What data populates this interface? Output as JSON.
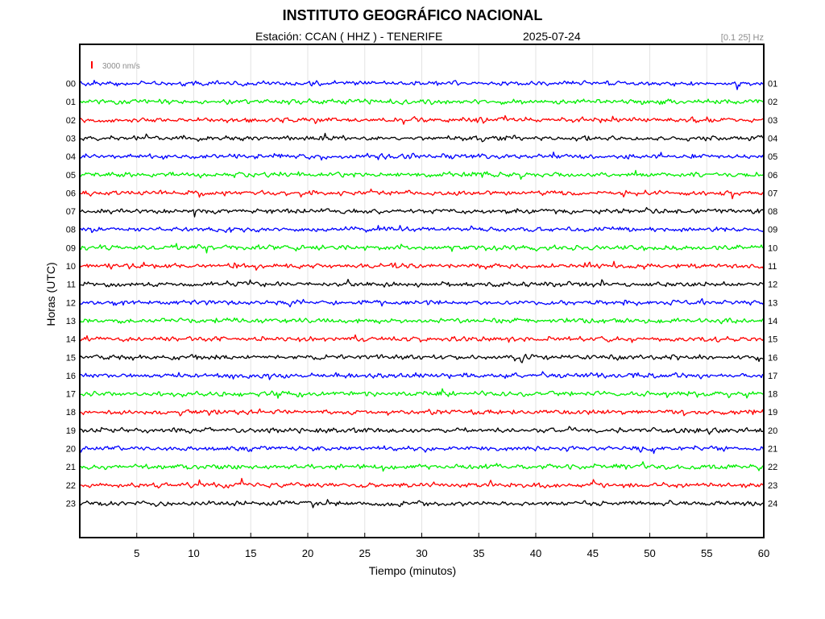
{
  "header": {
    "title": "INSTITUTO GEOGRÁFICO NACIONAL",
    "station_line": "Estación:  CCAN ( HHZ ) - TENERIFE",
    "date": "2025-07-24",
    "filter": "[0.1 25] Hz"
  },
  "chart_data": {
    "type": "line",
    "title": "INSTITUTO GEOGRÁFICO NACIONAL",
    "xlabel": "Tiempo (minutos)",
    "ylabel": "Horas (UTC)",
    "xlim": [
      0,
      60
    ],
    "x_ticks": [
      "5",
      "10",
      "15",
      "20",
      "25",
      "30",
      "35",
      "40",
      "45",
      "50",
      "55",
      "60"
    ],
    "x_tick_values": [
      5,
      10,
      15,
      20,
      25,
      30,
      35,
      40,
      45,
      50,
      55,
      60
    ],
    "grid": true,
    "scale_label": "3000 nm/s",
    "scale_color": "#ff0000",
    "left_hour_labels": [
      "00",
      "01",
      "02",
      "03",
      "04",
      "05",
      "06",
      "07",
      "08",
      "09",
      "10",
      "11",
      "12",
      "13",
      "14",
      "15",
      "16",
      "17",
      "18",
      "19",
      "20",
      "21",
      "22",
      "23"
    ],
    "right_hour_labels": [
      "01",
      "02",
      "03",
      "04",
      "05",
      "06",
      "07",
      "08",
      "09",
      "10",
      "11",
      "12",
      "13",
      "14",
      "15",
      "16",
      "17",
      "18",
      "19",
      "20",
      "21",
      "22",
      "23",
      "24"
    ],
    "trace_color_cycle": [
      "#0000ff",
      "#00ee00",
      "#ff0000",
      "#000000"
    ]
  }
}
